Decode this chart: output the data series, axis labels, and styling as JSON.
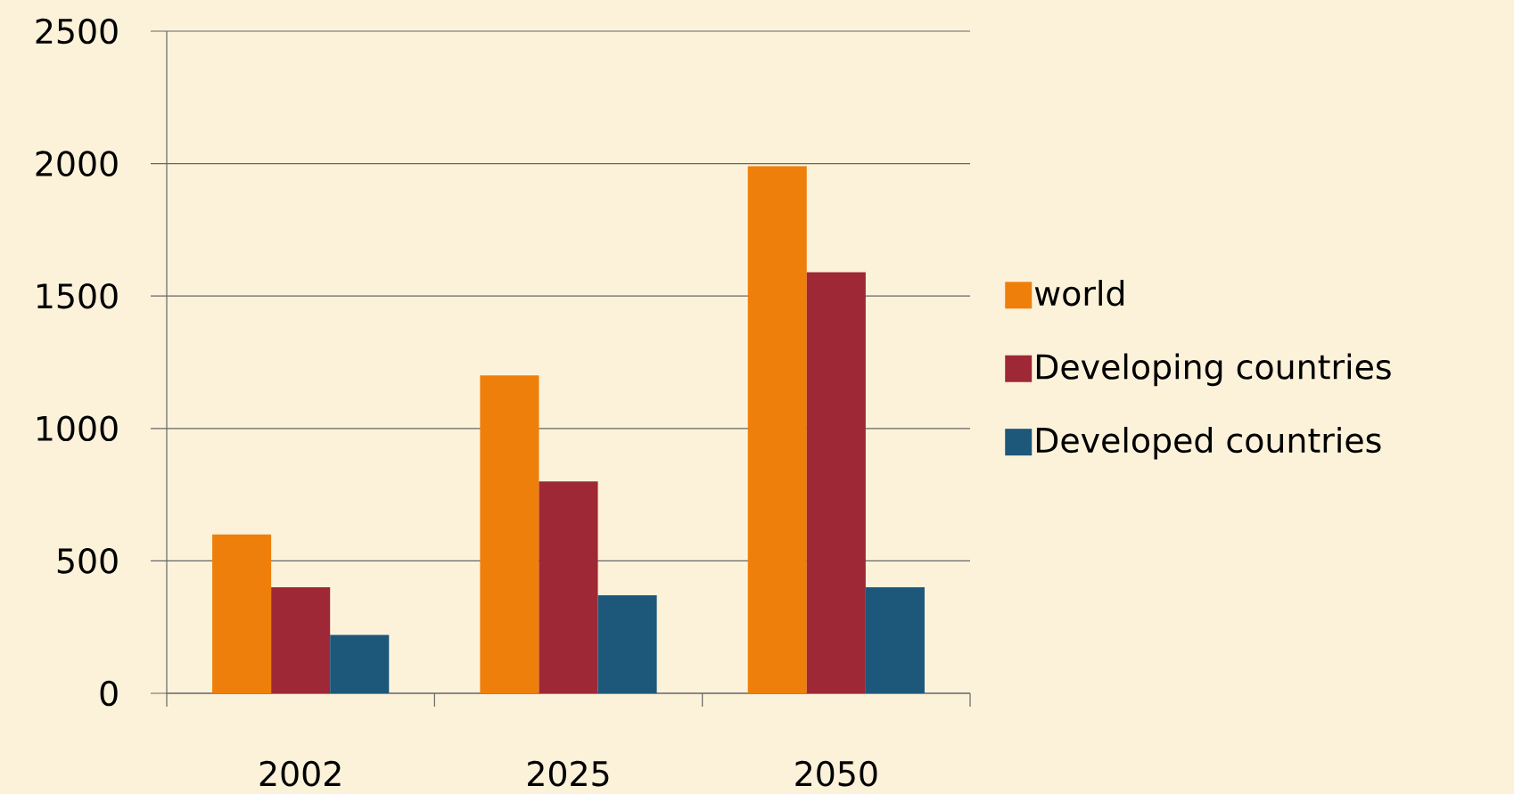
{
  "chart_data": {
    "type": "bar",
    "categories": [
      "2002",
      "2025",
      "2050"
    ],
    "series": [
      {
        "name": "world",
        "color": "#ef7f0b",
        "values": [
          600,
          1200,
          1990
        ]
      },
      {
        "name": "Developing countries",
        "color": "#9e2835",
        "values": [
          400,
          800,
          1590
        ]
      },
      {
        "name": "Developed countries",
        "color": "#1d587b",
        "values": [
          220,
          370,
          400
        ]
      }
    ],
    "ylim": [
      0,
      2500
    ],
    "yticks": [
      0,
      500,
      1000,
      1500,
      2000,
      2500
    ],
    "grid": "y",
    "legend": "right"
  }
}
